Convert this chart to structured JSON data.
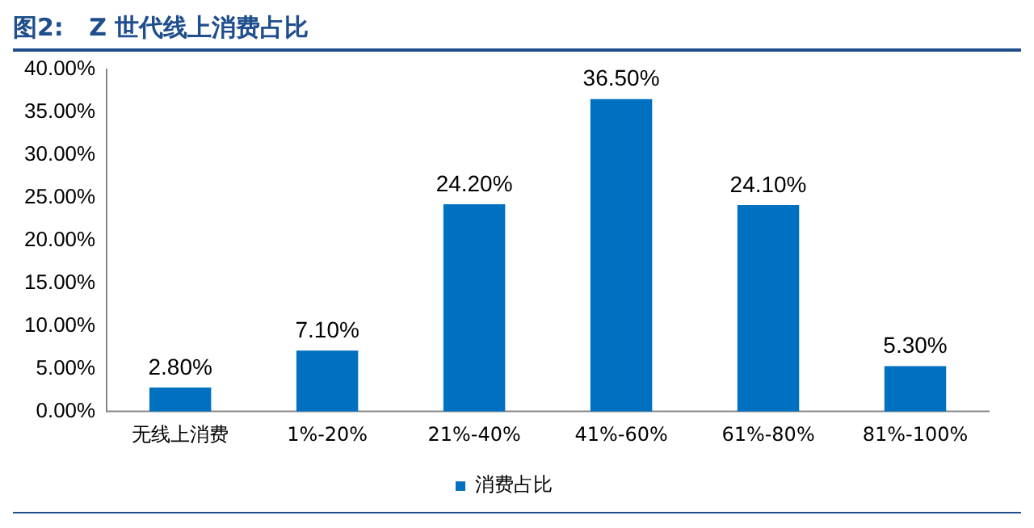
{
  "chart_data": {
    "type": "bar",
    "title": "图2:   Z 世代线上消费占比",
    "categories": [
      "无线上消费",
      "1%-20%",
      "21%-40%",
      "41%-60%",
      "61%-80%",
      "81%-100%"
    ],
    "series": [
      {
        "name": "消费占比",
        "color": "#0070c0",
        "values": [
          2.8,
          7.1,
          24.2,
          36.5,
          24.1,
          5.3
        ]
      }
    ],
    "value_labels": [
      "2.80%",
      "7.10%",
      "24.20%",
      "36.50%",
      "24.10%",
      "5.30%"
    ],
    "ylim": [
      0,
      40
    ],
    "yticks": [
      {
        "value": 0,
        "label": "0.00%"
      },
      {
        "value": 5,
        "label": "5.00%"
      },
      {
        "value": 10,
        "label": "10.00%"
      },
      {
        "value": 15,
        "label": "15.00%"
      },
      {
        "value": 20,
        "label": "20.00%"
      },
      {
        "value": 25,
        "label": "25.00%"
      },
      {
        "value": 30,
        "label": "30.00%"
      },
      {
        "value": 35,
        "label": "35.00%"
      },
      {
        "value": 40,
        "label": "40.00%"
      }
    ],
    "grid": false,
    "legend": "bottom"
  }
}
